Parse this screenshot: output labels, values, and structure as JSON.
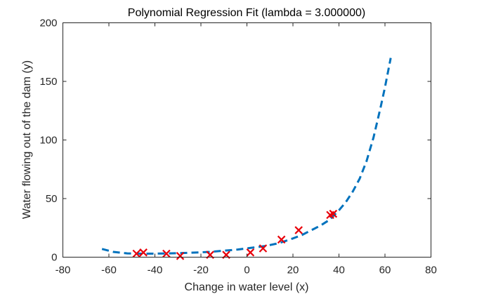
{
  "chart_data": {
    "type": "scatter",
    "title": "Polynomial Regression Fit (lambda = 3.000000)",
    "xlabel": "Change in water level (x)",
    "ylabel": "Water flowing out of the dam (y)",
    "xlim": [
      -80,
      80
    ],
    "ylim": [
      0,
      200
    ],
    "xticks": [
      -80,
      -60,
      -40,
      -20,
      0,
      20,
      40,
      60,
      80
    ],
    "yticks": [
      0,
      50,
      100,
      150,
      200
    ],
    "grid": false,
    "legend": "none",
    "series": [
      {
        "kind": "markers",
        "marker": "x",
        "color": "#e8000b",
        "x": [
          -48,
          -45,
          -35,
          -29,
          -16,
          -9,
          1.5,
          7,
          15,
          22.5,
          36.2,
          37.5
        ],
        "y": [
          3,
          4,
          3,
          1,
          2,
          2,
          4,
          7.5,
          15,
          23,
          36,
          37
        ]
      },
      {
        "kind": "line",
        "style": "dashed",
        "color": "#0072bd",
        "x": [
          -63,
          -58,
          -52,
          -46,
          -40,
          -34,
          -28,
          -22,
          -16,
          -10,
          -4,
          2,
          8,
          14,
          20,
          24,
          28,
          32,
          36,
          40,
          43,
          46,
          49,
          52,
          55,
          58,
          60,
          62.5
        ],
        "y": [
          7,
          4.5,
          3.2,
          3,
          3,
          3.2,
          3.5,
          4,
          4.5,
          5.5,
          6.5,
          8,
          9.5,
          12,
          16,
          19,
          23,
          27,
          32,
          40,
          47,
          56,
          67,
          82,
          102,
          127,
          145,
          170
        ]
      }
    ]
  }
}
